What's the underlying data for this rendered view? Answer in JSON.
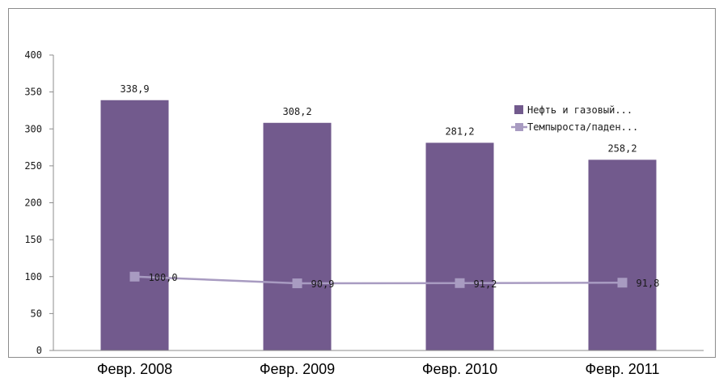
{
  "chart_data": {
    "type": "bar",
    "categories": [
      "Февр. 2008",
      "Февр. 2009",
      "Февр. 2010",
      "Февр. 2011"
    ],
    "ylim": [
      0,
      400
    ],
    "yticks": [
      0,
      50,
      100,
      150,
      200,
      250,
      300,
      350,
      400
    ],
    "grid": false,
    "legend_position": "top-right",
    "series": [
      {
        "name": "Нефть и газовый...",
        "type": "bar",
        "color": "#725a8d",
        "values": [
          338.9,
          308.2,
          281.2,
          258.2
        ],
        "labels": [
          "338,9",
          "308,2",
          "281,2",
          "258,2"
        ]
      },
      {
        "name": "Темпыроста/паден...",
        "type": "line",
        "color": "#a89bc1",
        "values": [
          100.0,
          90.9,
          91.2,
          91.8
        ],
        "labels": [
          "100,0",
          "90,9",
          "91,2",
          "91,8"
        ]
      }
    ]
  }
}
